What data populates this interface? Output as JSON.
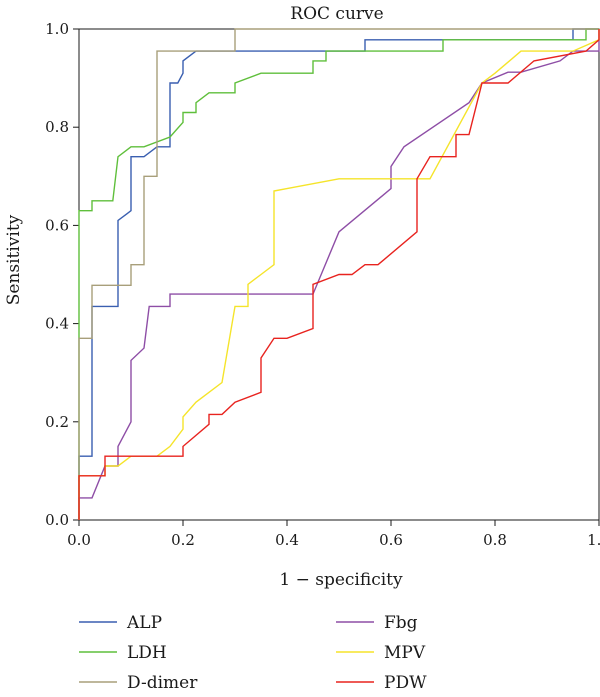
{
  "chart_data": {
    "type": "line",
    "title": "ROC curve",
    "xlabel": "1 − specificity",
    "ylabel": "Sensitivity",
    "xlim": [
      0,
      1
    ],
    "ylim": [
      0,
      1
    ],
    "xticks": [
      "0.0",
      "0.2",
      "0.4",
      "0.6",
      "0.8",
      "1.0"
    ],
    "yticks": [
      "0.0",
      "0.2",
      "0.4",
      "0.6",
      "0.8",
      "1.0"
    ],
    "grid": false,
    "legend_position": "bottom",
    "series": [
      {
        "name": "ALP",
        "color": "#3a5fb0",
        "points": [
          [
            0,
            0
          ],
          [
            0,
            0.13
          ],
          [
            0.025,
            0.13
          ],
          [
            0.025,
            0.435
          ],
          [
            0.075,
            0.435
          ],
          [
            0.075,
            0.61
          ],
          [
            0.1,
            0.63
          ],
          [
            0.1,
            0.74
          ],
          [
            0.125,
            0.74
          ],
          [
            0.15,
            0.76
          ],
          [
            0.175,
            0.76
          ],
          [
            0.175,
            0.89
          ],
          [
            0.19,
            0.89
          ],
          [
            0.2,
            0.91
          ],
          [
            0.2,
            0.935
          ],
          [
            0.225,
            0.955
          ],
          [
            0.55,
            0.955
          ],
          [
            0.55,
            0.978
          ],
          [
            0.95,
            0.978
          ],
          [
            0.95,
            1.0
          ],
          [
            1.0,
            1.0
          ]
        ]
      },
      {
        "name": "LDH",
        "color": "#5fbf3b",
        "points": [
          [
            0,
            0
          ],
          [
            0,
            0.63
          ],
          [
            0.025,
            0.63
          ],
          [
            0.025,
            0.65
          ],
          [
            0.065,
            0.65
          ],
          [
            0.075,
            0.74
          ],
          [
            0.1,
            0.76
          ],
          [
            0.125,
            0.76
          ],
          [
            0.175,
            0.78
          ],
          [
            0.2,
            0.81
          ],
          [
            0.2,
            0.83
          ],
          [
            0.225,
            0.83
          ],
          [
            0.225,
            0.85
          ],
          [
            0.25,
            0.87
          ],
          [
            0.3,
            0.87
          ],
          [
            0.3,
            0.89
          ],
          [
            0.35,
            0.91
          ],
          [
            0.45,
            0.91
          ],
          [
            0.45,
            0.935
          ],
          [
            0.475,
            0.935
          ],
          [
            0.475,
            0.955
          ],
          [
            0.7,
            0.955
          ],
          [
            0.7,
            0.978
          ],
          [
            0.975,
            0.978
          ],
          [
            0.975,
            1.0
          ],
          [
            1.0,
            1.0
          ]
        ]
      },
      {
        "name": "D-dimer",
        "color": "#a89f7a",
        "points": [
          [
            0,
            0
          ],
          [
            0,
            0.37
          ],
          [
            0.025,
            0.37
          ],
          [
            0.025,
            0.478
          ],
          [
            0.1,
            0.478
          ],
          [
            0.1,
            0.52
          ],
          [
            0.125,
            0.52
          ],
          [
            0.125,
            0.7
          ],
          [
            0.15,
            0.7
          ],
          [
            0.15,
            0.955
          ],
          [
            0.3,
            0.955
          ],
          [
            0.3,
            1.0
          ],
          [
            1.0,
            1.0
          ]
        ]
      },
      {
        "name": "Fbg",
        "color": "#8e4ea6",
        "points": [
          [
            0,
            0
          ],
          [
            0,
            0.045
          ],
          [
            0.025,
            0.045
          ],
          [
            0.05,
            0.11
          ],
          [
            0.075,
            0.11
          ],
          [
            0.075,
            0.15
          ],
          [
            0.1,
            0.2
          ],
          [
            0.1,
            0.325
          ],
          [
            0.125,
            0.35
          ],
          [
            0.135,
            0.435
          ],
          [
            0.175,
            0.435
          ],
          [
            0.175,
            0.46
          ],
          [
            0.45,
            0.46
          ],
          [
            0.5,
            0.587
          ],
          [
            0.6,
            0.675
          ],
          [
            0.6,
            0.72
          ],
          [
            0.625,
            0.76
          ],
          [
            0.75,
            0.85
          ],
          [
            0.775,
            0.89
          ],
          [
            0.825,
            0.912
          ],
          [
            0.85,
            0.912
          ],
          [
            0.925,
            0.935
          ],
          [
            0.95,
            0.955
          ],
          [
            1.0,
            0.955
          ],
          [
            1.0,
            1.0
          ]
        ]
      },
      {
        "name": "MPV",
        "color": "#f5e42a",
        "points": [
          [
            0,
            0
          ],
          [
            0,
            0.09
          ],
          [
            0.05,
            0.09
          ],
          [
            0.05,
            0.11
          ],
          [
            0.075,
            0.11
          ],
          [
            0.1,
            0.13
          ],
          [
            0.15,
            0.13
          ],
          [
            0.175,
            0.15
          ],
          [
            0.2,
            0.185
          ],
          [
            0.2,
            0.21
          ],
          [
            0.225,
            0.24
          ],
          [
            0.275,
            0.28
          ],
          [
            0.3,
            0.435
          ],
          [
            0.325,
            0.435
          ],
          [
            0.325,
            0.48
          ],
          [
            0.35,
            0.5
          ],
          [
            0.375,
            0.52
          ],
          [
            0.375,
            0.67
          ],
          [
            0.4,
            0.675
          ],
          [
            0.5,
            0.695
          ],
          [
            0.675,
            0.695
          ],
          [
            0.775,
            0.89
          ],
          [
            0.8,
            0.91
          ],
          [
            0.85,
            0.955
          ],
          [
            0.95,
            0.955
          ],
          [
            1.0,
            0.978
          ],
          [
            1.0,
            1.0
          ]
        ]
      },
      {
        "name": "PDW",
        "color": "#e8231f",
        "points": [
          [
            0,
            0
          ],
          [
            0,
            0.09
          ],
          [
            0.05,
            0.09
          ],
          [
            0.05,
            0.13
          ],
          [
            0.2,
            0.13
          ],
          [
            0.2,
            0.15
          ],
          [
            0.25,
            0.195
          ],
          [
            0.25,
            0.215
          ],
          [
            0.275,
            0.215
          ],
          [
            0.3,
            0.24
          ],
          [
            0.35,
            0.26
          ],
          [
            0.35,
            0.33
          ],
          [
            0.375,
            0.37
          ],
          [
            0.4,
            0.37
          ],
          [
            0.45,
            0.39
          ],
          [
            0.45,
            0.48
          ],
          [
            0.5,
            0.5
          ],
          [
            0.525,
            0.5
          ],
          [
            0.55,
            0.52
          ],
          [
            0.575,
            0.52
          ],
          [
            0.65,
            0.587
          ],
          [
            0.65,
            0.695
          ],
          [
            0.675,
            0.74
          ],
          [
            0.725,
            0.74
          ],
          [
            0.725,
            0.785
          ],
          [
            0.75,
            0.785
          ],
          [
            0.775,
            0.89
          ],
          [
            0.825,
            0.89
          ],
          [
            0.875,
            0.935
          ],
          [
            0.975,
            0.955
          ],
          [
            1.0,
            0.978
          ],
          [
            1.0,
            1.0
          ]
        ]
      }
    ]
  }
}
